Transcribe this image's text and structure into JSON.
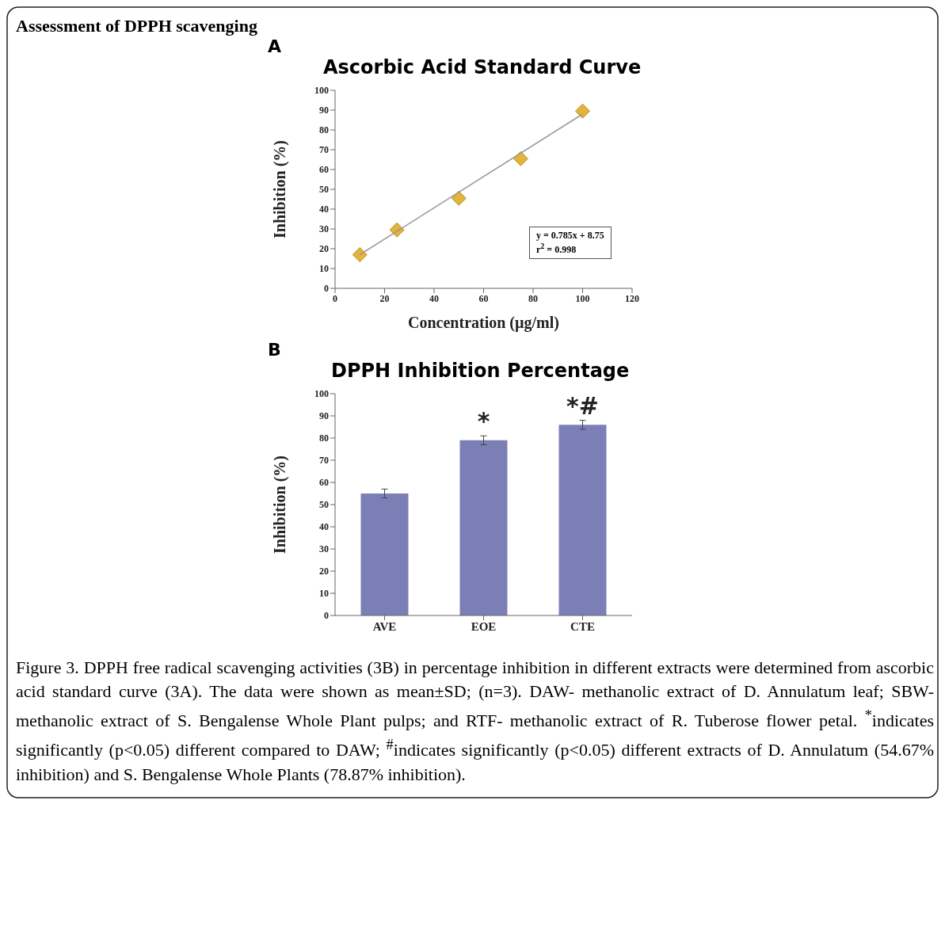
{
  "chart_data": [
    {
      "type": "scatter",
      "title": "Ascorbic Acid Standard Curve",
      "xlabel": "Concentration (µg/ml)",
      "ylabel": "Inhibition (%)",
      "x": [
        10,
        25,
        50,
        75,
        100
      ],
      "series": [
        {
          "type": "scatter",
          "color": "#e2b43c",
          "values": [
            17,
            29.5,
            45.5,
            65.5,
            89.5
          ]
        },
        {
          "type": "line",
          "color": "#9a9a9a",
          "marker": "none",
          "x": [
            10,
            100
          ],
          "values": [
            17,
            88
          ]
        }
      ],
      "xlim": [
        0,
        120
      ],
      "xticks": [
        0,
        20,
        40,
        60,
        80,
        100,
        120
      ],
      "ylim": [
        0,
        100
      ],
      "yticks": [
        0,
        10,
        20,
        30,
        40,
        50,
        60,
        70,
        80,
        90,
        100
      ],
      "marker": "diamond",
      "grid": false,
      "legend": false,
      "annotations": [
        "Assessment of DPPH scavenging",
        "A",
        "y = 0.785x + 8.75",
        "r$^{2}$ = 0.998"
      ]
    },
    {
      "type": "bar",
      "title": "DPPH Inhibition Percentage",
      "ylabel": "Inhibition  (%)",
      "categories": [
        "AVE",
        "EOE",
        "CTE"
      ],
      "values": [
        55,
        79,
        86
      ],
      "errors": [
        2,
        2,
        2
      ],
      "color": "#7c7fb6",
      "ylim": [
        0,
        100
      ],
      "yticks": [
        0,
        10,
        20,
        30,
        40,
        50,
        60,
        70,
        80,
        90,
        100
      ],
      "grid": false,
      "legend": false,
      "annotations": [
        "B",
        {
          "text": "*",
          "x": "EOE",
          "y": 82
        },
        {
          "text": "*#",
          "x": "CTE",
          "y": 89
        },
        "Figure 3. DPPH free radical scavenging activities (3B) in percentage inhibition in different extracts were determined from ascorbic acid standard curve (3A). The data were shown as mean±SD; (n=3). DAW- methanolic extract of D. Annulatum leaf; SBW- methanolic extract of S. Bengalense Whole Plant pulps; and RTF- methanolic extract of R. Tuberose flower petal. $^{*}$indicates significantly (p<0.05) different compared to DAW; $^{#}$indicates significantly (p<0.05) different extracts of D. Annulatum (54.67% inhibition) and S. Bengalense Whole Plants (78.87% inhibition)."
      ]
    }
  ]
}
